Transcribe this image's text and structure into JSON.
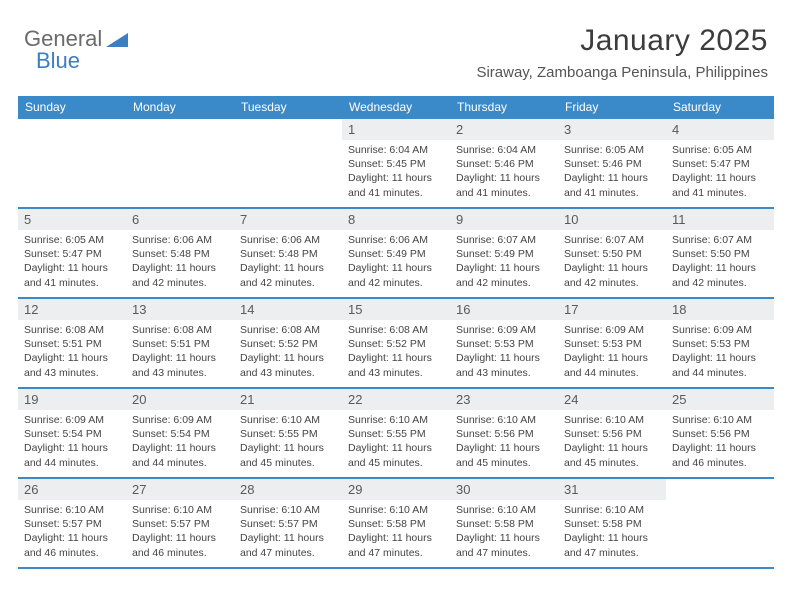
{
  "logo": {
    "text1": "General",
    "text2": "Blue"
  },
  "title": "January 2025",
  "subtitle": "Siraway, Zamboanga Peninsula, Philippines",
  "colors": {
    "header_bg": "#3a8ac9",
    "header_text": "#ffffff",
    "daynum_bg": "#eceeef",
    "border": "#3a8ac9",
    "title_color": "#3c3c3c",
    "subtitle_color": "#555555",
    "logo_gray": "#6b6b6b",
    "logo_blue": "#3a7fc4",
    "body_text": "#444444"
  },
  "days_of_week": [
    "Sunday",
    "Monday",
    "Tuesday",
    "Wednesday",
    "Thursday",
    "Friday",
    "Saturday"
  ],
  "layout": {
    "first_day_column": 3,
    "num_days": 31,
    "weeks": 5
  },
  "cells": {
    "1": {
      "sunrise": "6:04 AM",
      "sunset": "5:45 PM",
      "daylight": "11 hours and 41 minutes."
    },
    "2": {
      "sunrise": "6:04 AM",
      "sunset": "5:46 PM",
      "daylight": "11 hours and 41 minutes."
    },
    "3": {
      "sunrise": "6:05 AM",
      "sunset": "5:46 PM",
      "daylight": "11 hours and 41 minutes."
    },
    "4": {
      "sunrise": "6:05 AM",
      "sunset": "5:47 PM",
      "daylight": "11 hours and 41 minutes."
    },
    "5": {
      "sunrise": "6:05 AM",
      "sunset": "5:47 PM",
      "daylight": "11 hours and 41 minutes."
    },
    "6": {
      "sunrise": "6:06 AM",
      "sunset": "5:48 PM",
      "daylight": "11 hours and 42 minutes."
    },
    "7": {
      "sunrise": "6:06 AM",
      "sunset": "5:48 PM",
      "daylight": "11 hours and 42 minutes."
    },
    "8": {
      "sunrise": "6:06 AM",
      "sunset": "5:49 PM",
      "daylight": "11 hours and 42 minutes."
    },
    "9": {
      "sunrise": "6:07 AM",
      "sunset": "5:49 PM",
      "daylight": "11 hours and 42 minutes."
    },
    "10": {
      "sunrise": "6:07 AM",
      "sunset": "5:50 PM",
      "daylight": "11 hours and 42 minutes."
    },
    "11": {
      "sunrise": "6:07 AM",
      "sunset": "5:50 PM",
      "daylight": "11 hours and 42 minutes."
    },
    "12": {
      "sunrise": "6:08 AM",
      "sunset": "5:51 PM",
      "daylight": "11 hours and 43 minutes."
    },
    "13": {
      "sunrise": "6:08 AM",
      "sunset": "5:51 PM",
      "daylight": "11 hours and 43 minutes."
    },
    "14": {
      "sunrise": "6:08 AM",
      "sunset": "5:52 PM",
      "daylight": "11 hours and 43 minutes."
    },
    "15": {
      "sunrise": "6:08 AM",
      "sunset": "5:52 PM",
      "daylight": "11 hours and 43 minutes."
    },
    "16": {
      "sunrise": "6:09 AM",
      "sunset": "5:53 PM",
      "daylight": "11 hours and 43 minutes."
    },
    "17": {
      "sunrise": "6:09 AM",
      "sunset": "5:53 PM",
      "daylight": "11 hours and 44 minutes."
    },
    "18": {
      "sunrise": "6:09 AM",
      "sunset": "5:53 PM",
      "daylight": "11 hours and 44 minutes."
    },
    "19": {
      "sunrise": "6:09 AM",
      "sunset": "5:54 PM",
      "daylight": "11 hours and 44 minutes."
    },
    "20": {
      "sunrise": "6:09 AM",
      "sunset": "5:54 PM",
      "daylight": "11 hours and 44 minutes."
    },
    "21": {
      "sunrise": "6:10 AM",
      "sunset": "5:55 PM",
      "daylight": "11 hours and 45 minutes."
    },
    "22": {
      "sunrise": "6:10 AM",
      "sunset": "5:55 PM",
      "daylight": "11 hours and 45 minutes."
    },
    "23": {
      "sunrise": "6:10 AM",
      "sunset": "5:56 PM",
      "daylight": "11 hours and 45 minutes."
    },
    "24": {
      "sunrise": "6:10 AM",
      "sunset": "5:56 PM",
      "daylight": "11 hours and 45 minutes."
    },
    "25": {
      "sunrise": "6:10 AM",
      "sunset": "5:56 PM",
      "daylight": "11 hours and 46 minutes."
    },
    "26": {
      "sunrise": "6:10 AM",
      "sunset": "5:57 PM",
      "daylight": "11 hours and 46 minutes."
    },
    "27": {
      "sunrise": "6:10 AM",
      "sunset": "5:57 PM",
      "daylight": "11 hours and 46 minutes."
    },
    "28": {
      "sunrise": "6:10 AM",
      "sunset": "5:57 PM",
      "daylight": "11 hours and 47 minutes."
    },
    "29": {
      "sunrise": "6:10 AM",
      "sunset": "5:58 PM",
      "daylight": "11 hours and 47 minutes."
    },
    "30": {
      "sunrise": "6:10 AM",
      "sunset": "5:58 PM",
      "daylight": "11 hours and 47 minutes."
    },
    "31": {
      "sunrise": "6:10 AM",
      "sunset": "5:58 PM",
      "daylight": "11 hours and 47 minutes."
    }
  },
  "labels": {
    "sunrise_prefix": "Sunrise: ",
    "sunset_prefix": "Sunset: ",
    "daylight_prefix": "Daylight: "
  }
}
